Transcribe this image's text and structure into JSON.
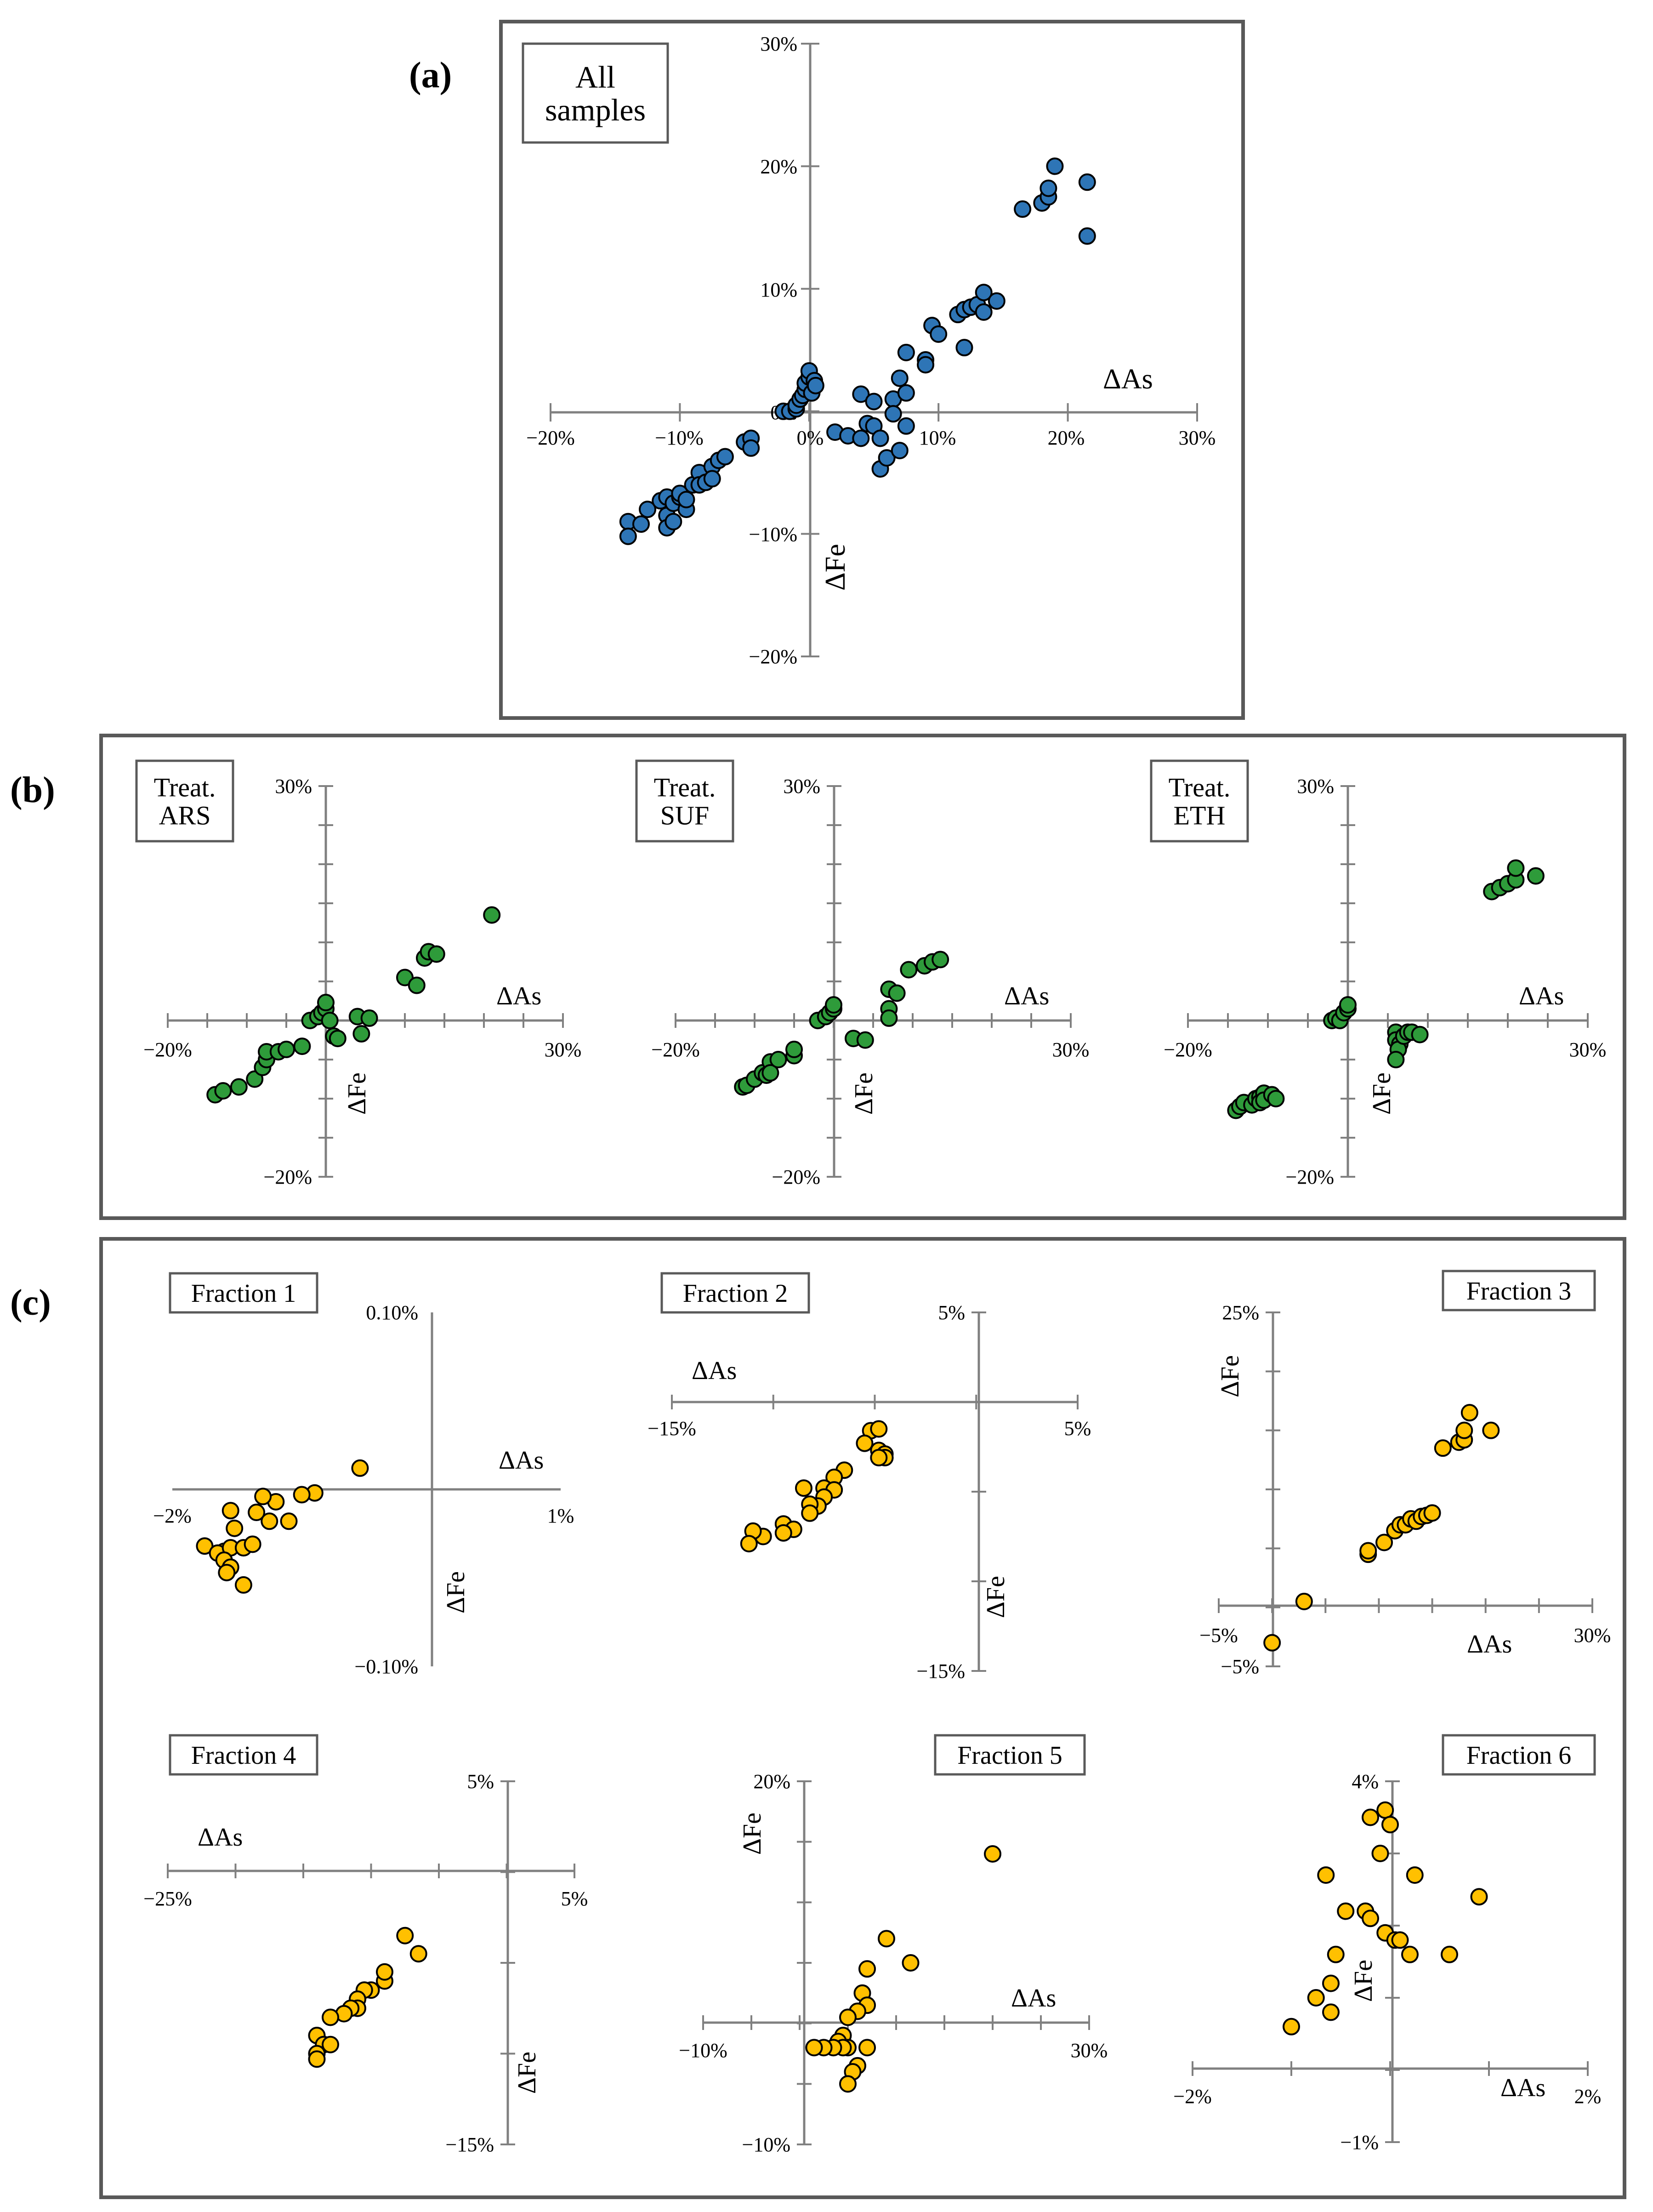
{
  "figure": {
    "labels": {
      "a": "(a)",
      "b": "(b)",
      "c": "(c)"
    },
    "colors": {
      "frame": "#595959",
      "axis": "#808080",
      "blue": "#2e75b6",
      "green": "#2e9b3a",
      "orange": "#ffc000",
      "outline": "#000000"
    }
  },
  "chart_data": [
    {
      "id": "a",
      "type": "scatter",
      "title": "All samples",
      "xlabel": "ΔAs",
      "ylabel": "ΔFe",
      "xlim": [
        -20,
        30
      ],
      "ylim": [
        -20,
        30
      ],
      "xticks": [
        -20,
        -10,
        0,
        10,
        20,
        30
      ],
      "xtick_labels": [
        "−20%",
        "−10%",
        "0%",
        "10%",
        "20%",
        "30%"
      ],
      "yticks": [
        -20,
        -10,
        0,
        10,
        20,
        30
      ],
      "ytick_labels": [
        "−20%",
        "−10%",
        "0%",
        "10%",
        "20%",
        "30%"
      ],
      "color": "blue",
      "points": [
        [
          -14,
          -9
        ],
        [
          -14,
          -10.2
        ],
        [
          -13,
          -9.2
        ],
        [
          -12.5,
          -8
        ],
        [
          -11.5,
          -7.3
        ],
        [
          -11,
          -7
        ],
        [
          -11,
          -8.5
        ],
        [
          -11,
          -9.5
        ],
        [
          -10.5,
          -7.5
        ],
        [
          -10.5,
          -9
        ],
        [
          -10,
          -7
        ],
        [
          -10,
          -6.7
        ],
        [
          -9.5,
          -8
        ],
        [
          -9.5,
          -7.2
        ],
        [
          -9,
          -6
        ],
        [
          -8.5,
          -5
        ],
        [
          -8.5,
          -6
        ],
        [
          -8,
          -5.8
        ],
        [
          -7.5,
          -4.5
        ],
        [
          -7.5,
          -5.5
        ],
        [
          -7,
          -4
        ],
        [
          -6.5,
          -3.7
        ],
        [
          -5,
          -2.5
        ],
        [
          -4.5,
          -2.2
        ],
        [
          -4.5,
          -3
        ],
        [
          -2,
          0
        ],
        [
          -1.5,
          0
        ],
        [
          -1,
          0.2
        ],
        [
          -1,
          0.5
        ],
        [
          -0.7,
          1
        ],
        [
          -0.5,
          1.3
        ],
        [
          -0.3,
          1.8
        ],
        [
          -0.3,
          2.3
        ],
        [
          0,
          2.8
        ],
        [
          0,
          3.3
        ],
        [
          0.2,
          1.5
        ],
        [
          0.4,
          2.5
        ],
        [
          0.5,
          2.1
        ],
        [
          2,
          -1.7
        ],
        [
          3,
          -2
        ],
        [
          4,
          1.4
        ],
        [
          4,
          -2.2
        ],
        [
          4.5,
          -1
        ],
        [
          5,
          0.8
        ],
        [
          5,
          -1.2
        ],
        [
          5.5,
          -2.2
        ],
        [
          5.5,
          -4.7
        ],
        [
          6,
          -3.8
        ],
        [
          6.5,
          1
        ],
        [
          6.5,
          -0.2
        ],
        [
          7,
          2.7
        ],
        [
          7,
          -3.2
        ],
        [
          7.5,
          4.8
        ],
        [
          7.5,
          1.5
        ],
        [
          7.5,
          -1.2
        ],
        [
          9,
          4.2
        ],
        [
          9,
          3.8
        ],
        [
          9.5,
          7
        ],
        [
          10,
          6.3
        ],
        [
          11.5,
          7.9
        ],
        [
          12,
          5.2
        ],
        [
          12,
          8.3
        ],
        [
          12.5,
          8.5
        ],
        [
          13,
          8.7
        ],
        [
          13.5,
          9.7
        ],
        [
          13.5,
          8.1
        ],
        [
          14.5,
          9
        ],
        [
          16.5,
          16.5
        ],
        [
          18,
          17
        ],
        [
          18.5,
          17.5
        ],
        [
          18.5,
          18.2
        ],
        [
          19,
          20
        ],
        [
          21.5,
          18.7
        ],
        [
          21.5,
          14.3
        ]
      ]
    },
    {
      "id": "b1",
      "type": "scatter",
      "title": "Treat. ARS",
      "xlabel": "ΔAs",
      "ylabel": "ΔFe",
      "xlim": [
        -20,
        30
      ],
      "ylim": [
        -20,
        30
      ],
      "xtick_labels": [
        "−20%",
        "30%"
      ],
      "ytick_labels": [
        "−20%",
        "30%"
      ],
      "color": "green",
      "points": [
        [
          -14,
          -9.5
        ],
        [
          -13,
          -9
        ],
        [
          -11,
          -8.5
        ],
        [
          -9,
          -7.5
        ],
        [
          -8,
          -6
        ],
        [
          -7.5,
          -5
        ],
        [
          -7.5,
          -4
        ],
        [
          -6,
          -4
        ],
        [
          -5,
          -3.7
        ],
        [
          -3,
          -3.3
        ],
        [
          -2,
          0
        ],
        [
          -1,
          0.5
        ],
        [
          -0.5,
          1
        ],
        [
          0,
          1.5
        ],
        [
          0,
          2.3
        ],
        [
          0.5,
          0
        ],
        [
          1,
          -2
        ],
        [
          1.5,
          -2.3
        ],
        [
          4,
          0.5
        ],
        [
          4.5,
          -1.7
        ],
        [
          5.5,
          0.3
        ],
        [
          10,
          5.5
        ],
        [
          11.5,
          4.5
        ],
        [
          12.5,
          8
        ],
        [
          13,
          8.8
        ],
        [
          14,
          8.5
        ],
        [
          21,
          13.5
        ]
      ]
    },
    {
      "id": "b2",
      "type": "scatter",
      "title": "Treat. SUF",
      "xlabel": "ΔAs",
      "ylabel": "ΔFe",
      "xlim": [
        -20,
        30
      ],
      "ylim": [
        -20,
        30
      ],
      "xtick_labels": [
        "−20%",
        "30%"
      ],
      "ytick_labels": [
        "−20%",
        "30%"
      ],
      "color": "green",
      "points": [
        [
          -11.5,
          -8.5
        ],
        [
          -11,
          -8.3
        ],
        [
          -10,
          -7.5
        ],
        [
          -9,
          -6.7
        ],
        [
          -8,
          -5.3
        ],
        [
          -8.5,
          -7
        ],
        [
          -8,
          -6.7
        ],
        [
          -7,
          -5
        ],
        [
          -5,
          -4.5
        ],
        [
          -5,
          -3.7
        ],
        [
          -2,
          0
        ],
        [
          -1,
          0.5
        ],
        [
          -0.5,
          1
        ],
        [
          0,
          1.5
        ],
        [
          0,
          2
        ],
        [
          2.5,
          -2.3
        ],
        [
          4,
          -2.5
        ],
        [
          7,
          1.5
        ],
        [
          7,
          0.3
        ],
        [
          7,
          4
        ],
        [
          8,
          3.5
        ],
        [
          9.5,
          6.5
        ],
        [
          11.5,
          7
        ],
        [
          12.5,
          7.5
        ],
        [
          13.5,
          7.8
        ]
      ]
    },
    {
      "id": "b3",
      "type": "scatter",
      "title": "Treat. ETH",
      "xlabel": "ΔAs",
      "ylabel": "ΔFe",
      "xlim": [
        -20,
        30
      ],
      "ylim": [
        -20,
        30
      ],
      "xtick_labels": [
        "−20%",
        "30%"
      ],
      "ytick_labels": [
        "−20%",
        "30%"
      ],
      "color": "green",
      "points": [
        [
          -14,
          -11.5
        ],
        [
          -13.5,
          -11
        ],
        [
          -13,
          -10.5
        ],
        [
          -12,
          -10.8
        ],
        [
          -11.5,
          -10
        ],
        [
          -11,
          -9.8
        ],
        [
          -11,
          -10.5
        ],
        [
          -10.5,
          -9.3
        ],
        [
          -10.5,
          -10.2
        ],
        [
          -9.5,
          -9.5
        ],
        [
          -9,
          -10
        ],
        [
          -2,
          0
        ],
        [
          -1.5,
          0.3
        ],
        [
          -1,
          0
        ],
        [
          -0.5,
          1
        ],
        [
          0,
          1.5
        ],
        [
          0,
          2
        ],
        [
          6,
          -1.5
        ],
        [
          6,
          -2.5
        ],
        [
          6.5,
          -3
        ],
        [
          6.3,
          -3.7
        ],
        [
          6,
          -5
        ],
        [
          7,
          -2
        ],
        [
          7.5,
          -1.5
        ],
        [
          8,
          -1.5
        ],
        [
          9,
          -1.8
        ],
        [
          18,
          16.5
        ],
        [
          19,
          17
        ],
        [
          20,
          17.5
        ],
        [
          21,
          18
        ],
        [
          21,
          19.5
        ],
        [
          23.5,
          18.5
        ]
      ]
    },
    {
      "id": "c1",
      "type": "scatter",
      "title": "Fraction 1",
      "xlabel": "ΔAs",
      "ylabel": "ΔFe",
      "xlim": [
        -2,
        1
      ],
      "ylim": [
        -0.1,
        0.1
      ],
      "xtick_labels": [
        "−2%",
        "1%"
      ],
      "ytick_labels": [
        "−0.10%",
        "0.10%"
      ],
      "color": "orange",
      "points": [
        [
          -0.55,
          0.012
        ],
        [
          -0.9,
          -0.002
        ],
        [
          -1,
          -0.003
        ],
        [
          -1.2,
          -0.007
        ],
        [
          -1.1,
          -0.018
        ],
        [
          -1.3,
          -0.004
        ],
        [
          -1.55,
          -0.012
        ],
        [
          -1.52,
          -0.022
        ],
        [
          -1.75,
          -0.032
        ],
        [
          -1.6,
          -0.035
        ],
        [
          -1.65,
          -0.036
        ],
        [
          -1.55,
          -0.033
        ],
        [
          -1.45,
          -0.033
        ],
        [
          -1.38,
          -0.031
        ],
        [
          -1.6,
          -0.04
        ],
        [
          -1.55,
          -0.044
        ],
        [
          -1.58,
          -0.047
        ],
        [
          -1.45,
          -0.054
        ],
        [
          -1.25,
          -0.018
        ],
        [
          -1.35,
          -0.013
        ]
      ]
    },
    {
      "id": "c2",
      "type": "scatter",
      "title": "Fraction 2",
      "xlabel": "ΔAs",
      "ylabel": "ΔFe",
      "xlim": [
        -15,
        5
      ],
      "ylim": [
        -15,
        5
      ],
      "xtick_labels": [
        "−15%",
        "5%"
      ],
      "ytick_labels": [
        "−15%",
        "5%"
      ],
      "color": "orange",
      "points": [
        [
          -5.2,
          -1.6
        ],
        [
          -4.8,
          -1.5
        ],
        [
          -5.5,
          -2.3
        ],
        [
          -4.8,
          -2.7
        ],
        [
          -4.5,
          -2.9
        ],
        [
          -4.5,
          -3.1
        ],
        [
          -4.8,
          -3.1
        ],
        [
          -6.5,
          -3.8
        ],
        [
          -7,
          -4.2
        ],
        [
          -8.5,
          -4.8
        ],
        [
          -7.5,
          -4.8
        ],
        [
          -7,
          -4.9
        ],
        [
          -7.5,
          -5.3
        ],
        [
          -7.8,
          -5.8
        ],
        [
          -8.2,
          -5.7
        ],
        [
          -8.2,
          -6.2
        ],
        [
          -9.5,
          -6.8
        ],
        [
          -10.5,
          -7.5
        ],
        [
          -11,
          -7.2
        ],
        [
          -11.2,
          -7.9
        ],
        [
          -9,
          -7.1
        ],
        [
          -9.5,
          -7.3
        ]
      ]
    },
    {
      "id": "c3",
      "type": "scatter",
      "title": "Fraction 3",
      "xlabel": "ΔAs",
      "ylabel": "ΔFe",
      "xlim": [
        -5,
        30
      ],
      "ylim": [
        -5,
        25
      ],
      "xtick_labels": [
        "−5%",
        "30%"
      ],
      "ytick_labels": [
        "−5%",
        "25%"
      ],
      "color": "orange",
      "points": [
        [
          0,
          -3
        ],
        [
          3,
          0.5
        ],
        [
          9,
          4.5
        ],
        [
          9,
          4.8
        ],
        [
          10.5,
          5.5
        ],
        [
          11.5,
          6.5
        ],
        [
          12,
          7
        ],
        [
          12.5,
          7
        ],
        [
          13,
          7.5
        ],
        [
          13.5,
          7.3
        ],
        [
          14,
          7.7
        ],
        [
          14.5,
          7.8
        ],
        [
          15,
          8
        ],
        [
          16,
          13.5
        ],
        [
          17.5,
          14
        ],
        [
          18,
          14.2
        ],
        [
          18,
          15
        ],
        [
          18.5,
          16.5
        ],
        [
          20.5,
          15
        ]
      ]
    },
    {
      "id": "c4",
      "type": "scatter",
      "title": "Fraction 4",
      "xlabel": "ΔAs",
      "ylabel": "ΔFe",
      "xlim": [
        -25,
        5
      ],
      "ylim": [
        -15,
        5
      ],
      "xtick_labels": [
        "−25%",
        "5%"
      ],
      "ytick_labels": [
        "−15%",
        "5%"
      ],
      "color": "orange",
      "points": [
        [
          -7.5,
          -3.5
        ],
        [
          -6.5,
          -4.5
        ],
        [
          -9,
          -6
        ],
        [
          -9,
          -5.5
        ],
        [
          -10,
          -6.5
        ],
        [
          -10.5,
          -6.5
        ],
        [
          -11,
          -7
        ],
        [
          -11,
          -7.5
        ],
        [
          -11.5,
          -7.5
        ],
        [
          -12,
          -7.8
        ],
        [
          -13,
          -8
        ],
        [
          -14,
          -9
        ],
        [
          -13.5,
          -9.5
        ],
        [
          -13,
          -9.5
        ],
        [
          -14,
          -10
        ],
        [
          -14,
          -10.3
        ]
      ]
    },
    {
      "id": "c5",
      "type": "scatter",
      "title": "Fraction 5",
      "xlabel": "ΔAs",
      "ylabel": "ΔFe",
      "xlim": [
        -10,
        30
      ],
      "ylim": [
        -10,
        20
      ],
      "xtick_labels": [
        "−10%",
        "30%"
      ],
      "ytick_labels": [
        "−10%",
        "20%"
      ],
      "color": "orange",
      "points": [
        [
          20,
          14
        ],
        [
          9,
          7
        ],
        [
          11.5,
          5
        ],
        [
          7,
          4.5
        ],
        [
          6.5,
          2.5
        ],
        [
          7,
          1.5
        ],
        [
          6,
          1
        ],
        [
          5,
          0.5
        ],
        [
          4.5,
          -1
        ],
        [
          4,
          -1.5
        ],
        [
          5,
          -2
        ],
        [
          4.5,
          -2
        ],
        [
          7,
          -2
        ],
        [
          3.5,
          -2
        ],
        [
          2.5,
          -2
        ],
        [
          1.5,
          -2
        ],
        [
          6,
          -3.5
        ],
        [
          5.5,
          -4
        ],
        [
          5,
          -5
        ]
      ]
    },
    {
      "id": "c6",
      "type": "scatter",
      "title": "Fraction 6",
      "xlabel": "ΔAs",
      "ylabel": "ΔFe",
      "xlim": [
        -2,
        2
      ],
      "ylim": [
        -1,
        4
      ],
      "xtick_labels": [
        "−2%",
        "2%"
      ],
      "ytick_labels": [
        "−1%",
        "4%"
      ],
      "color": "orange",
      "points": [
        [
          -0.05,
          3.6
        ],
        [
          0,
          3.4
        ],
        [
          -0.2,
          3.5
        ],
        [
          -0.1,
          3
        ],
        [
          0.25,
          2.7
        ],
        [
          -0.65,
          2.7
        ],
        [
          0.9,
          2.4
        ],
        [
          -0.45,
          2.2
        ],
        [
          -0.25,
          2.2
        ],
        [
          -0.2,
          2.1
        ],
        [
          -0.05,
          1.9
        ],
        [
          0.05,
          1.8
        ],
        [
          0.1,
          1.8
        ],
        [
          0.2,
          1.6
        ],
        [
          0.6,
          1.6
        ],
        [
          -0.55,
          1.6
        ],
        [
          -0.6,
          1.2
        ],
        [
          -0.75,
          1
        ],
        [
          -0.6,
          0.8
        ],
        [
          -1,
          0.6
        ]
      ]
    }
  ]
}
